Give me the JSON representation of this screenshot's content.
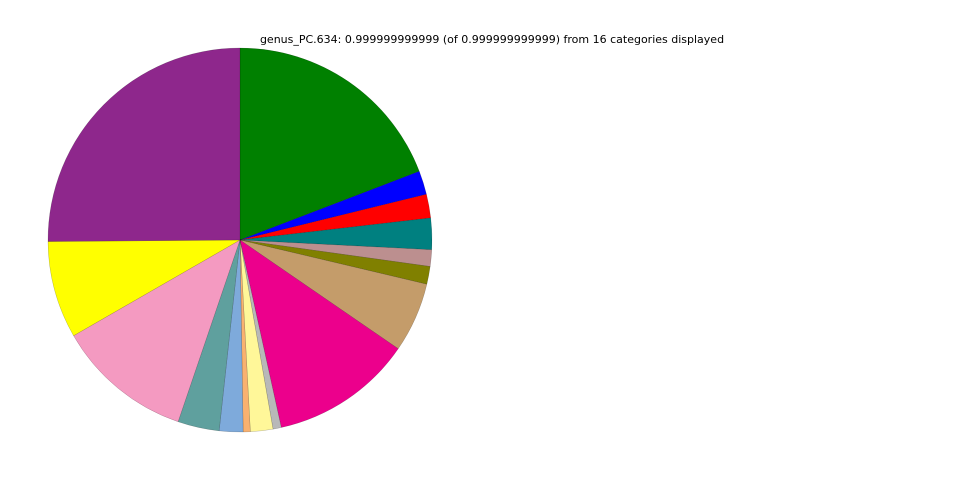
{
  "chart_data": {
    "type": "pie",
    "title": "genus_PC.634: 0.999999999999 (of 0.999999999999) from 16 categories displayed",
    "start_angle_deg": 90,
    "direction": "clockwise",
    "slices": [
      {
        "value": 19.23,
        "color": "#008000"
      },
      {
        "value": 2.0,
        "color": "#0000ff"
      },
      {
        "value": 2.0,
        "color": "#ff0000"
      },
      {
        "value": 2.65,
        "color": "#008080"
      },
      {
        "value": 1.4,
        "color": "#bc8f8f"
      },
      {
        "value": 1.5,
        "color": "#808000"
      },
      {
        "value": 5.9,
        "color": "#c49c6a"
      },
      {
        "value": 12.0,
        "color": "#ec008c"
      },
      {
        "value": 0.7,
        "color": "#b8b8b8"
      },
      {
        "value": 1.9,
        "color": "#fff799"
      },
      {
        "value": 0.6,
        "color": "#f9b16f"
      },
      {
        "value": 2.0,
        "color": "#7eaadb"
      },
      {
        "value": 3.5,
        "color": "#5fa09e"
      },
      {
        "value": 11.5,
        "color": "#f49ac1"
      },
      {
        "value": 8.2,
        "color": "#ffff00"
      },
      {
        "value": 25.2,
        "color": "#8e278c"
      }
    ]
  }
}
